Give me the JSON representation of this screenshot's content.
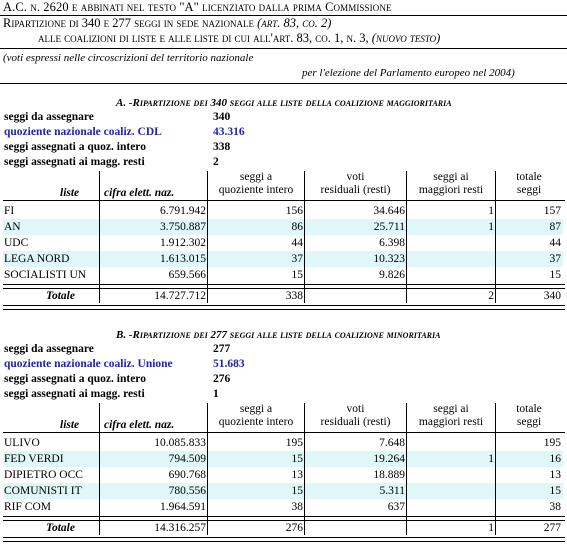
{
  "header": {
    "line1": "A.C. n. 2620 e abbinati nel testo \"A\" licenziato dalla prima Commissione",
    "line2_main": "Ripartizione di 340 e 277 seggi in sede nazionale ",
    "line2_ref": "(art. 83, co. 2)",
    "line3_main": "alle coalizioni di liste e alle liste di cui all'art. 83, co. 1, n. 3, ",
    "line3_ref": "(nuovo testo)",
    "note1": "(voti espressi nelle circoscrizioni del territorio nazionale",
    "note2": "per l'elezione del Parlamento europeo nel 2004)"
  },
  "section_a": {
    "title": "A. -Ripartizione dei 340 seggi alle liste della coalizione maggioritaria",
    "summary": [
      {
        "label": "seggi da assegnare",
        "value": "340",
        "blue": false
      },
      {
        "label": "quoziente nazionale coaliz. CDL",
        "value": "43.316",
        "blue": true
      },
      {
        "label": "seggi assegnati a quoz. intero",
        "value": "338",
        "blue": false
      },
      {
        "label": "seggi assegnati ai magg. resti",
        "value": "2",
        "blue": false
      }
    ],
    "columns": [
      "liste",
      "cifra elett. naz.",
      "seggi a quoziente intero",
      "voti residuali (resti)",
      "seggi ai maggiori resti",
      "totale seggi"
    ],
    "rows": [
      {
        "lista": "FI",
        "cifra": "6.791.942",
        "seggi_q": "156",
        "resti": "34.646",
        "seggi_r": "1",
        "totale": "157"
      },
      {
        "lista": "AN",
        "cifra": "3.750.887",
        "seggi_q": "86",
        "resti": "25.711",
        "seggi_r": "1",
        "totale": "87"
      },
      {
        "lista": "UDC",
        "cifra": "1.912.302",
        "seggi_q": "44",
        "resti": "6.398",
        "seggi_r": "",
        "totale": "44"
      },
      {
        "lista": "LEGA NORD",
        "cifra": "1.613.015",
        "seggi_q": "37",
        "resti": "10.323",
        "seggi_r": "",
        "totale": "37"
      },
      {
        "lista": "SOCIALISTI UN",
        "cifra": "659.566",
        "seggi_q": "15",
        "resti": "9.826",
        "seggi_r": "",
        "totale": "15"
      }
    ],
    "total": {
      "label": "Totale",
      "cifra": "14.727.712",
      "seggi_q": "338",
      "resti": "",
      "seggi_r": "2",
      "totale": "340"
    }
  },
  "section_b": {
    "title": "B. -Ripartizione dei 277 seggi alle liste della coalizione minoritaria",
    "summary": [
      {
        "label": "seggi da assegnare",
        "value": "277",
        "blue": false
      },
      {
        "label": "quoziente nazionale coaliz. Unione",
        "value": "51.683",
        "blue": true
      },
      {
        "label": "seggi assegnati a quoz. intero",
        "value": "276",
        "blue": false
      },
      {
        "label": "seggi assegnati ai magg. resti",
        "value": "1",
        "blue": false
      }
    ],
    "columns": [
      "liste",
      "cifra elett. naz.",
      "seggi a quoziente intero",
      "voti residuali (resti)",
      "seggi ai maggiori resti",
      "totale seggi"
    ],
    "rows": [
      {
        "lista": "ULIVO",
        "cifra": "10.085.833",
        "seggi_q": "195",
        "resti": "7.648",
        "seggi_r": "",
        "totale": "195"
      },
      {
        "lista": "FED VERDI",
        "cifra": "794.509",
        "seggi_q": "15",
        "resti": "19.264",
        "seggi_r": "1",
        "totale": "16"
      },
      {
        "lista": "DIPIETRO OCC",
        "cifra": "690.768",
        "seggi_q": "13",
        "resti": "18.889",
        "seggi_r": "",
        "totale": "13"
      },
      {
        "lista": "COMUNISTI IT",
        "cifra": "780.556",
        "seggi_q": "15",
        "resti": "5.311",
        "seggi_r": "",
        "totale": "15"
      },
      {
        "lista": "RIF COM",
        "cifra": "1.964.591",
        "seggi_q": "38",
        "resti": "637",
        "seggi_r": "",
        "totale": "38"
      }
    ],
    "total": {
      "label": "Totale",
      "cifra": "14.316.257",
      "seggi_q": "276",
      "resti": "",
      "seggi_r": "1",
      "totale": "277"
    }
  }
}
